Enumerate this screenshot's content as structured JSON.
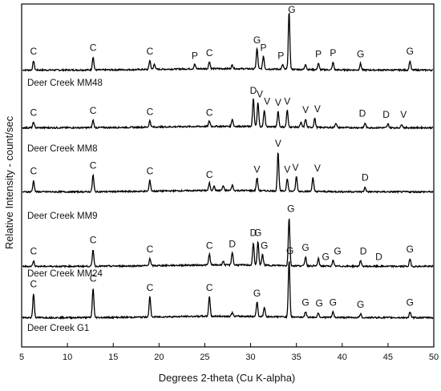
{
  "chart_data": {
    "type": "line",
    "xlabel": "Degrees 2-theta (Cu K-alpha)",
    "ylabel": "Relative Intensity - count/sec",
    "xlim": [
      5,
      50
    ],
    "x_ticks": [
      "5",
      "10",
      "15",
      "20",
      "25",
      "30",
      "35",
      "40",
      "45",
      "50"
    ],
    "x_tick_values": [
      5,
      10,
      15,
      20,
      25,
      30,
      35,
      40,
      45,
      50
    ],
    "y_ticks": [],
    "grid": false,
    "series": [
      {
        "name": "Deer Creek MM48",
        "baseline": 0.5,
        "peaks": [
          [
            6.3,
            10
          ],
          [
            12.8,
            14
          ],
          [
            19,
            10
          ],
          [
            19.5,
            6
          ],
          [
            25.5,
            8
          ],
          [
            23.9,
            5
          ],
          [
            28,
            4
          ],
          [
            30.7,
            22
          ],
          [
            31.4,
            14
          ],
          [
            33.5,
            5
          ],
          [
            34.2,
            62
          ],
          [
            36,
            6
          ],
          [
            37.4,
            7
          ],
          [
            39,
            8
          ],
          [
            42,
            7
          ],
          [
            47.4,
            10
          ]
        ],
        "labels": [
          [
            6.3,
            "C"
          ],
          [
            12.8,
            "C"
          ],
          [
            19,
            "C"
          ],
          [
            23.9,
            "P"
          ],
          [
            25.5,
            "C"
          ],
          [
            30.7,
            "G"
          ],
          [
            31.4,
            "P"
          ],
          [
            33.3,
            "P"
          ],
          [
            34.5,
            "G"
          ],
          [
            37.4,
            "P"
          ],
          [
            39,
            "P"
          ],
          [
            42,
            "G"
          ],
          [
            47.4,
            "G"
          ]
        ]
      },
      {
        "name": "Deer Creek MM8",
        "baseline": 0.5,
        "peaks": [
          [
            6.3,
            6
          ],
          [
            12.8,
            8
          ],
          [
            19,
            7
          ],
          [
            25.5,
            6
          ],
          [
            28,
            8
          ],
          [
            30.3,
            30
          ],
          [
            30.8,
            26
          ],
          [
            31.5,
            18
          ],
          [
            33,
            17
          ],
          [
            34,
            18
          ],
          [
            35.5,
            5
          ],
          [
            36,
            9
          ],
          [
            37,
            10
          ],
          [
            39.3,
            5
          ],
          [
            42.5,
            5
          ],
          [
            45,
            4
          ],
          [
            46.5,
            4
          ]
        ],
        "labels": [
          [
            6.3,
            "C"
          ],
          [
            12.8,
            "C"
          ],
          [
            19,
            "C"
          ],
          [
            25.5,
            "C"
          ],
          [
            30.3,
            "D"
          ],
          [
            31,
            "V"
          ],
          [
            31.8,
            "V"
          ],
          [
            33,
            "V"
          ],
          [
            34,
            "V"
          ],
          [
            36,
            "V"
          ],
          [
            37.3,
            "V"
          ],
          [
            42.2,
            "D"
          ],
          [
            44.8,
            "D"
          ],
          [
            46.7,
            "V"
          ]
        ]
      },
      {
        "name": "Deer Creek MM9",
        "baseline": 0.5,
        "peaks": [
          [
            6.3,
            12
          ],
          [
            12.8,
            18
          ],
          [
            19,
            12
          ],
          [
            25.5,
            8
          ],
          [
            26,
            5
          ],
          [
            27,
            5
          ],
          [
            28,
            6
          ],
          [
            30.7,
            14
          ],
          [
            33,
            42
          ],
          [
            34,
            14
          ],
          [
            35,
            16
          ],
          [
            36.8,
            15
          ],
          [
            42.5,
            5
          ]
        ],
        "labels": [
          [
            6.3,
            "C"
          ],
          [
            12.8,
            "C"
          ],
          [
            19,
            "C"
          ],
          [
            25.5,
            "C"
          ],
          [
            30.7,
            "V"
          ],
          [
            33,
            "V"
          ],
          [
            34,
            "V"
          ],
          [
            34.9,
            "V"
          ],
          [
            37.3,
            "V"
          ],
          [
            42.5,
            "D"
          ]
        ]
      },
      {
        "name": "Deer Creek MM24",
        "baseline": 0.5,
        "peaks": [
          [
            6.3,
            6
          ],
          [
            12.8,
            18
          ],
          [
            19,
            8
          ],
          [
            25.5,
            12
          ],
          [
            27,
            4
          ],
          [
            28,
            14
          ],
          [
            30.3,
            24
          ],
          [
            30.8,
            26
          ],
          [
            31.3,
            12
          ],
          [
            34.2,
            52
          ],
          [
            36,
            10
          ],
          [
            37.4,
            8
          ],
          [
            39,
            6
          ],
          [
            42,
            6
          ],
          [
            47.4,
            8
          ]
        ],
        "labels": [
          [
            6.3,
            "C"
          ],
          [
            12.8,
            "C"
          ],
          [
            19,
            "C"
          ],
          [
            25.5,
            "C"
          ],
          [
            28,
            "D"
          ],
          [
            30.3,
            "D"
          ],
          [
            30.8,
            "G"
          ],
          [
            31.5,
            "G"
          ],
          [
            34.4,
            "G"
          ],
          [
            36,
            "G"
          ],
          [
            38.2,
            "G"
          ],
          [
            39.5,
            "G"
          ],
          [
            42.3,
            "D"
          ],
          [
            44,
            "D"
          ],
          [
            47.4,
            "G"
          ]
        ]
      },
      {
        "name": "Deer Creek G1",
        "baseline": 0.5,
        "peaks": [
          [
            6.3,
            26
          ],
          [
            12.8,
            32
          ],
          [
            19,
            22
          ],
          [
            25.5,
            22
          ],
          [
            28,
            4
          ],
          [
            30.7,
            16
          ],
          [
            31.5,
            10
          ],
          [
            34.2,
            62
          ],
          [
            36,
            6
          ],
          [
            37.4,
            5
          ],
          [
            39,
            6
          ],
          [
            42,
            4
          ],
          [
            47.4,
            6
          ]
        ],
        "labels": [
          [
            6.3,
            "C"
          ],
          [
            12.8,
            "C"
          ],
          [
            19,
            "C"
          ],
          [
            25.5,
            "C"
          ],
          [
            30.7,
            "G"
          ],
          [
            34.3,
            "G"
          ],
          [
            36,
            "G"
          ],
          [
            37.5,
            "G"
          ],
          [
            39,
            "G"
          ],
          [
            42,
            "G"
          ],
          [
            47.4,
            "G"
          ]
        ]
      }
    ]
  }
}
